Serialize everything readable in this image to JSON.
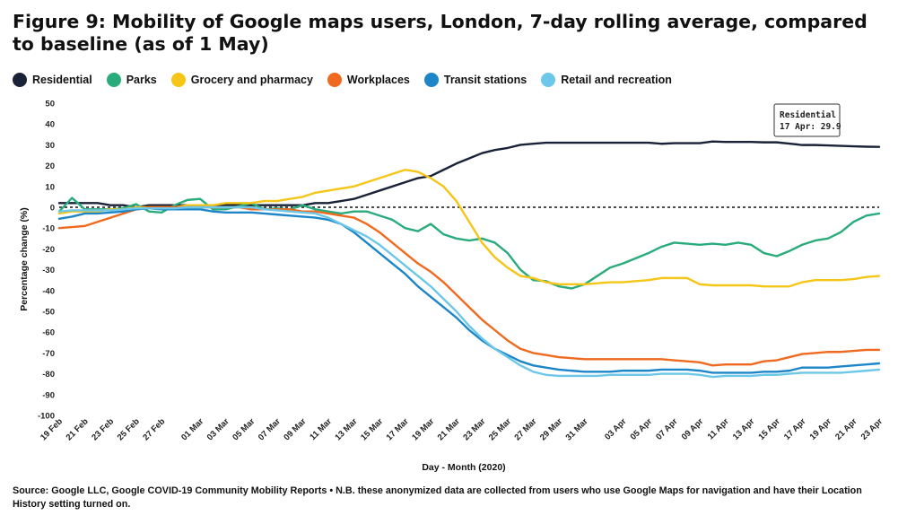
{
  "title": "Figure 9: Mobility of Google maps users, London, 7-day rolling average, compared to baseline (as of 1 May)",
  "source": "Source: Google LLC, Google COVID-19 Community Mobility Reports • N.B. these anonymized data are collected from users who use Google Maps for navigation and have their Location History setting turned on.",
  "tooltip": {
    "series": "Residential",
    "label": "17 Apr: 29.9"
  },
  "chart_data": {
    "type": "line",
    "xlabel": "Day - Month (2020)",
    "ylabel": "Percentage change (%)",
    "ylim": [
      -100,
      50
    ],
    "yticks": [
      50,
      40,
      30,
      20,
      10,
      0,
      -10,
      -20,
      -30,
      -40,
      -50,
      -60,
      -70,
      -80,
      -90,
      -100
    ],
    "baseline": 0,
    "grid": false,
    "legend_position": "top",
    "x": [
      "2020-02-19",
      "2020-02-20",
      "2020-02-21",
      "2020-02-22",
      "2020-02-23",
      "2020-02-24",
      "2020-02-25",
      "2020-02-26",
      "2020-02-27",
      "2020-02-28",
      "2020-02-29",
      "2020-03-01",
      "2020-03-02",
      "2020-03-03",
      "2020-03-04",
      "2020-03-05",
      "2020-03-06",
      "2020-03-07",
      "2020-03-08",
      "2020-03-09",
      "2020-03-10",
      "2020-03-11",
      "2020-03-12",
      "2020-03-13",
      "2020-03-14",
      "2020-03-15",
      "2020-03-16",
      "2020-03-17",
      "2020-03-18",
      "2020-03-19",
      "2020-03-20",
      "2020-03-21",
      "2020-03-22",
      "2020-03-23",
      "2020-03-24",
      "2020-03-25",
      "2020-03-26",
      "2020-03-27",
      "2020-03-28",
      "2020-03-29",
      "2020-03-30",
      "2020-03-31",
      "2020-04-01",
      "2020-04-02",
      "2020-04-03",
      "2020-04-04",
      "2020-04-05",
      "2020-04-06",
      "2020-04-07",
      "2020-04-08",
      "2020-04-09",
      "2020-04-10",
      "2020-04-11",
      "2020-04-12",
      "2020-04-13",
      "2020-04-14",
      "2020-04-15",
      "2020-04-16",
      "2020-04-17",
      "2020-04-18",
      "2020-04-19",
      "2020-04-20",
      "2020-04-21",
      "2020-04-22",
      "2020-04-23"
    ],
    "xtick_labels": [
      "19 Feb",
      "21 Feb",
      "23 Feb",
      "25 Feb",
      "27 Feb",
      "01 Mar",
      "03 Mar",
      "05 Mar",
      "07 Mar",
      "09 Mar",
      "11 Mar",
      "13 Mar",
      "15 Mar",
      "17 Mar",
      "19 Mar",
      "21 Mar",
      "23 Mar",
      "25 Mar",
      "27 Mar",
      "29 Mar",
      "31 Mar",
      "03 Apr",
      "05 Apr",
      "07 Apr",
      "09 Apr",
      "11 Apr",
      "13 Apr",
      "15 Apr",
      "17 Apr",
      "19 Apr",
      "21 Apr",
      "23 Apr"
    ],
    "series": [
      {
        "name": "Residential",
        "color": "#1a2238",
        "values": [
          2,
          2,
          2,
          2,
          1,
          1,
          0,
          1,
          1,
          1,
          1,
          1,
          1,
          1,
          1,
          1,
          1,
          1,
          1,
          1,
          2,
          2,
          3,
          4,
          6,
          8,
          10,
          12,
          14,
          15,
          18,
          21,
          23.5,
          26,
          27.5,
          28.5,
          30,
          30.5,
          31,
          31,
          31,
          31,
          31,
          31,
          31,
          31,
          31,
          30.5,
          30.8,
          30.8,
          30.8,
          31.6,
          31.4,
          31.4,
          31.4,
          31.2,
          31.2,
          30.6,
          29.9,
          29.9,
          29.7,
          29.5,
          29.3,
          29.1,
          29
        ]
      },
      {
        "name": "Parks",
        "color": "#2aab7b",
        "values": [
          -2,
          4.5,
          -1,
          -1,
          -1,
          -0.5,
          1.5,
          -2,
          -2.5,
          1,
          3.5,
          4,
          -1,
          -1,
          0.5,
          2,
          -1,
          -0.5,
          -1,
          1,
          -1,
          -2,
          -3,
          -2,
          -2,
          -4,
          -6,
          -10,
          -11.5,
          -8,
          -13,
          -15,
          -16,
          -15,
          -17,
          -22,
          -30,
          -35,
          -35.5,
          -38,
          -39,
          -37,
          -33,
          -29,
          -27,
          -24.5,
          -22,
          -19,
          -17,
          -17.5,
          -18,
          -17.5,
          -18,
          -17,
          -18,
          -22,
          -23.5,
          -21,
          -18,
          -16,
          -15,
          -12,
          -7,
          -4,
          -3
        ]
      },
      {
        "name": "Grocery and pharmacy",
        "color": "#f5c518",
        "values": [
          -3,
          -2,
          -2,
          -2,
          -1,
          -1,
          0,
          0,
          0,
          0,
          1,
          1,
          1,
          2,
          2,
          2,
          3,
          3,
          4,
          5,
          7,
          8,
          9,
          10,
          12,
          14,
          16,
          18,
          17,
          14,
          10,
          3,
          -7,
          -17,
          -24,
          -29,
          -33,
          -34,
          -36,
          -37,
          -37,
          -37,
          -36.5,
          -36,
          -36,
          -35.5,
          -35,
          -34,
          -34,
          -34,
          -37,
          -37.5,
          -37.5,
          -37.5,
          -37.5,
          -38,
          -38,
          -38,
          -36,
          -35,
          -35,
          -35,
          -34.5,
          -33.5,
          -33
        ]
      },
      {
        "name": "Workplaces",
        "color": "#ef6a1f",
        "values": [
          -10,
          -9.5,
          -9,
          -7,
          -5,
          -3,
          -1,
          0,
          0,
          0,
          0,
          0,
          0,
          0,
          0,
          -1,
          -1,
          -1,
          -1,
          -2,
          -2,
          -3,
          -4,
          -5,
          -8,
          -12,
          -17,
          -22,
          -27,
          -31,
          -36,
          -42,
          -48,
          -54,
          -59,
          -64,
          -68,
          -70,
          -71,
          -72,
          -72.5,
          -73,
          -73,
          -73,
          -73,
          -73,
          -73,
          -73,
          -73.5,
          -74,
          -74.5,
          -76,
          -75.5,
          -75.5,
          -75.5,
          -74,
          -73.5,
          -72,
          -70.5,
          -70,
          -69.5,
          -69.5,
          -69,
          -68.5,
          -68.5
        ]
      },
      {
        "name": "Transit stations",
        "color": "#1d86c8",
        "values": [
          -5.5,
          -4.5,
          -3,
          -3,
          -2.5,
          -2,
          -1,
          -0.5,
          -1,
          -1,
          -1,
          -1,
          -2,
          -2.5,
          -2.5,
          -2.5,
          -3,
          -3.5,
          -4,
          -4.5,
          -5,
          -6,
          -8,
          -12,
          -17,
          -22,
          -27,
          -32,
          -38,
          -43,
          -48,
          -53,
          -59,
          -64,
          -68,
          -71,
          -74,
          -76,
          -77,
          -78,
          -78.5,
          -79,
          -79,
          -79,
          -78.5,
          -78.5,
          -78.5,
          -78,
          -78,
          -78,
          -78.5,
          -79.5,
          -79.5,
          -79.5,
          -79.5,
          -79,
          -79,
          -78.5,
          -77,
          -77,
          -77,
          -76.5,
          -76,
          -75.5,
          -75
        ]
      },
      {
        "name": "Retail and recreation",
        "color": "#6cc7e8",
        "values": [
          -2,
          -1.5,
          -1.5,
          -1.5,
          -1.5,
          -1,
          -0.5,
          -0.5,
          -0.5,
          -0.5,
          0,
          0,
          0,
          0,
          0,
          0,
          -1,
          -1.5,
          -2,
          -2.5,
          -3,
          -5,
          -8,
          -11,
          -14,
          -18,
          -23,
          -28,
          -33,
          -38,
          -44,
          -50,
          -57,
          -63,
          -68,
          -72,
          -76,
          -79,
          -80.5,
          -81,
          -81,
          -81,
          -81,
          -80.5,
          -80.5,
          -80.5,
          -80.5,
          -80,
          -80,
          -80,
          -80.5,
          -81.5,
          -81,
          -81,
          -81,
          -80.5,
          -80.5,
          -80,
          -79.5,
          -79.5,
          -79.5,
          -79.5,
          -79,
          -78.5,
          -78
        ]
      }
    ]
  }
}
